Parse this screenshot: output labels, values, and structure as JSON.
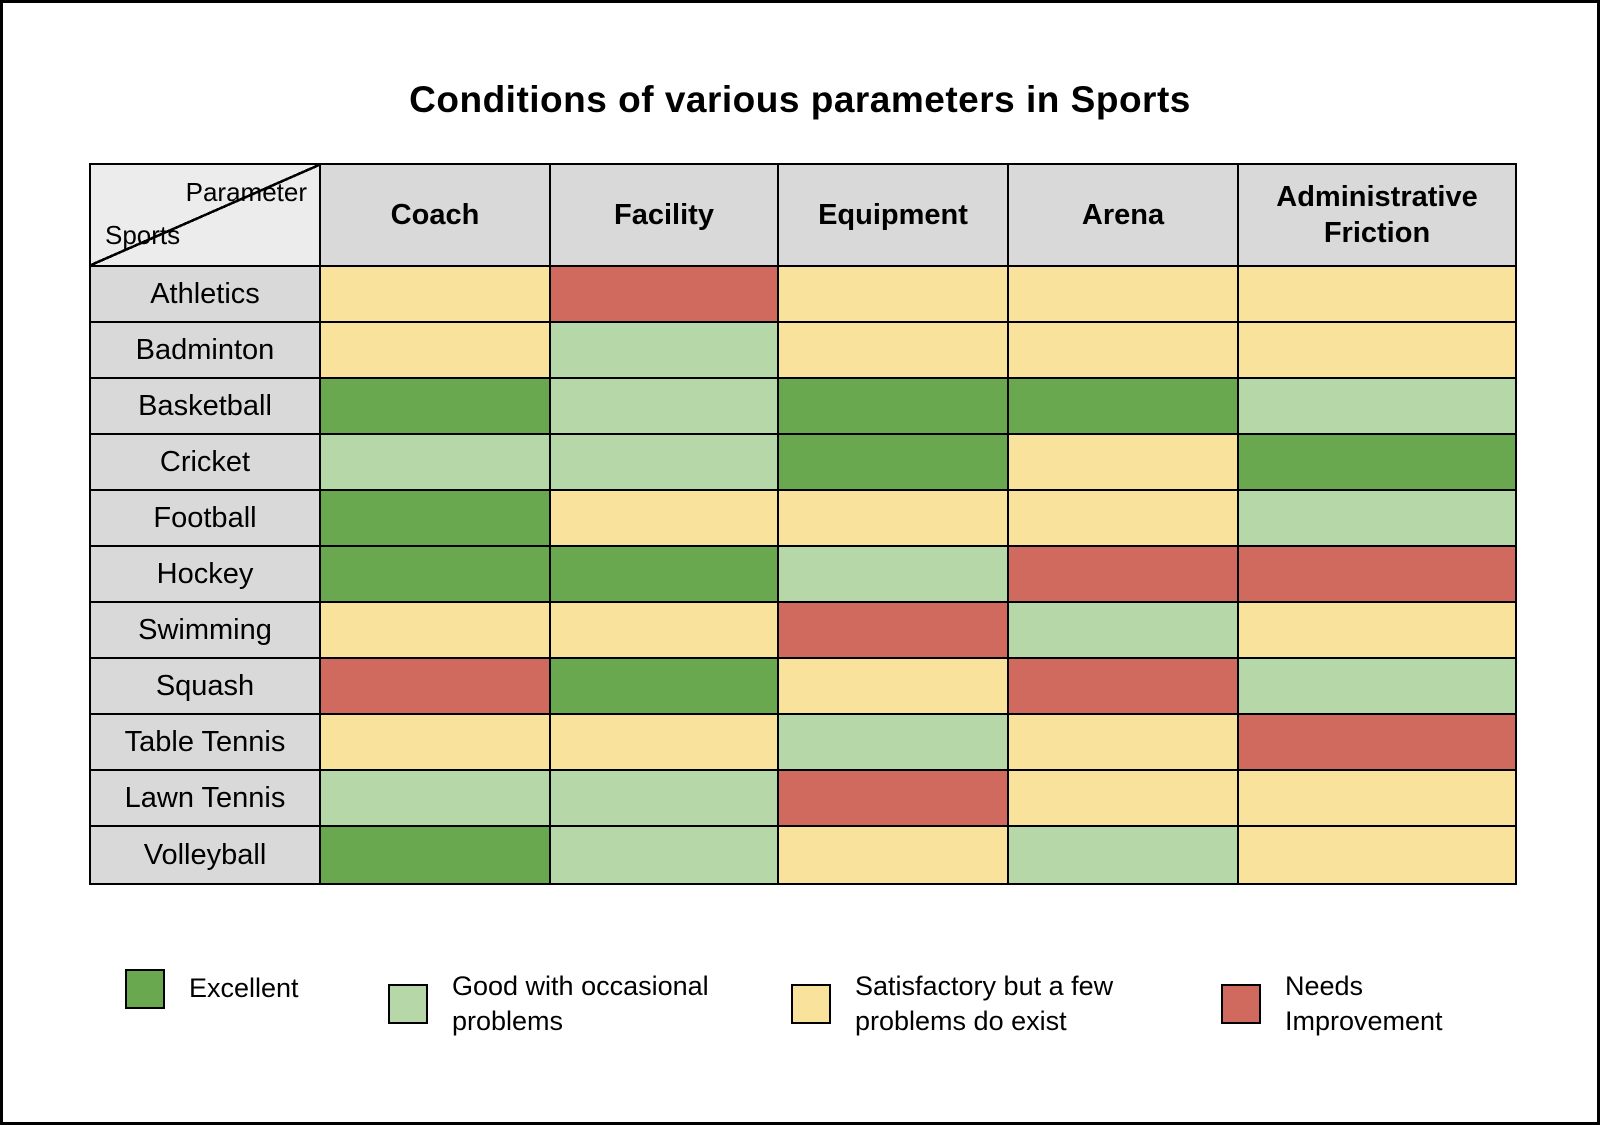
{
  "title": "Conditions of various parameters in Sports",
  "corner": {
    "top_label": "Parameter",
    "bottom_label": "Sports"
  },
  "chart_data": {
    "type": "heatmap",
    "title": "Conditions of various parameters in Sports",
    "x_labels": [
      "Coach",
      "Facility",
      "Equipment",
      "Arena",
      "Administrative Friction"
    ],
    "y_labels": [
      "Athletics",
      "Badminton",
      "Basketball",
      "Cricket",
      "Football",
      "Hockey",
      "Swimming",
      "Squash",
      "Table Tennis",
      "Lawn Tennis",
      "Volleyball"
    ],
    "value_key": {
      "E": "Excellent",
      "G": "Good with occasional problems",
      "S": "Satisfactory but a few problems do exist",
      "N": "Needs Improvement"
    },
    "values": [
      [
        "S",
        "N",
        "S",
        "S",
        "S"
      ],
      [
        "S",
        "G",
        "S",
        "S",
        "S"
      ],
      [
        "E",
        "G",
        "E",
        "E",
        "G"
      ],
      [
        "G",
        "G",
        "E",
        "S",
        "E"
      ],
      [
        "E",
        "S",
        "S",
        "S",
        "G"
      ],
      [
        "E",
        "E",
        "G",
        "N",
        "N"
      ],
      [
        "S",
        "S",
        "N",
        "G",
        "S"
      ],
      [
        "N",
        "E",
        "S",
        "N",
        "G"
      ],
      [
        "S",
        "S",
        "G",
        "S",
        "N"
      ],
      [
        "G",
        "G",
        "N",
        "S",
        "S"
      ],
      [
        "E",
        "G",
        "S",
        "G",
        "S"
      ]
    ],
    "legend_position": "bottom"
  },
  "legend": [
    {
      "key": "E",
      "label": "Excellent",
      "color": "#6aa84f"
    },
    {
      "key": "G",
      "label": "Good with occasional problems",
      "color": "#b6d7a8"
    },
    {
      "key": "S",
      "label": "Satisfactory but a few problems do exist",
      "color": "#f9e29b"
    },
    {
      "key": "N",
      "label": "Needs Improvement",
      "color": "#d06a5f"
    }
  ],
  "colors": {
    "header_bg": "#d9d9d9",
    "corner_bg": "#ececec",
    "border": "#000000"
  }
}
